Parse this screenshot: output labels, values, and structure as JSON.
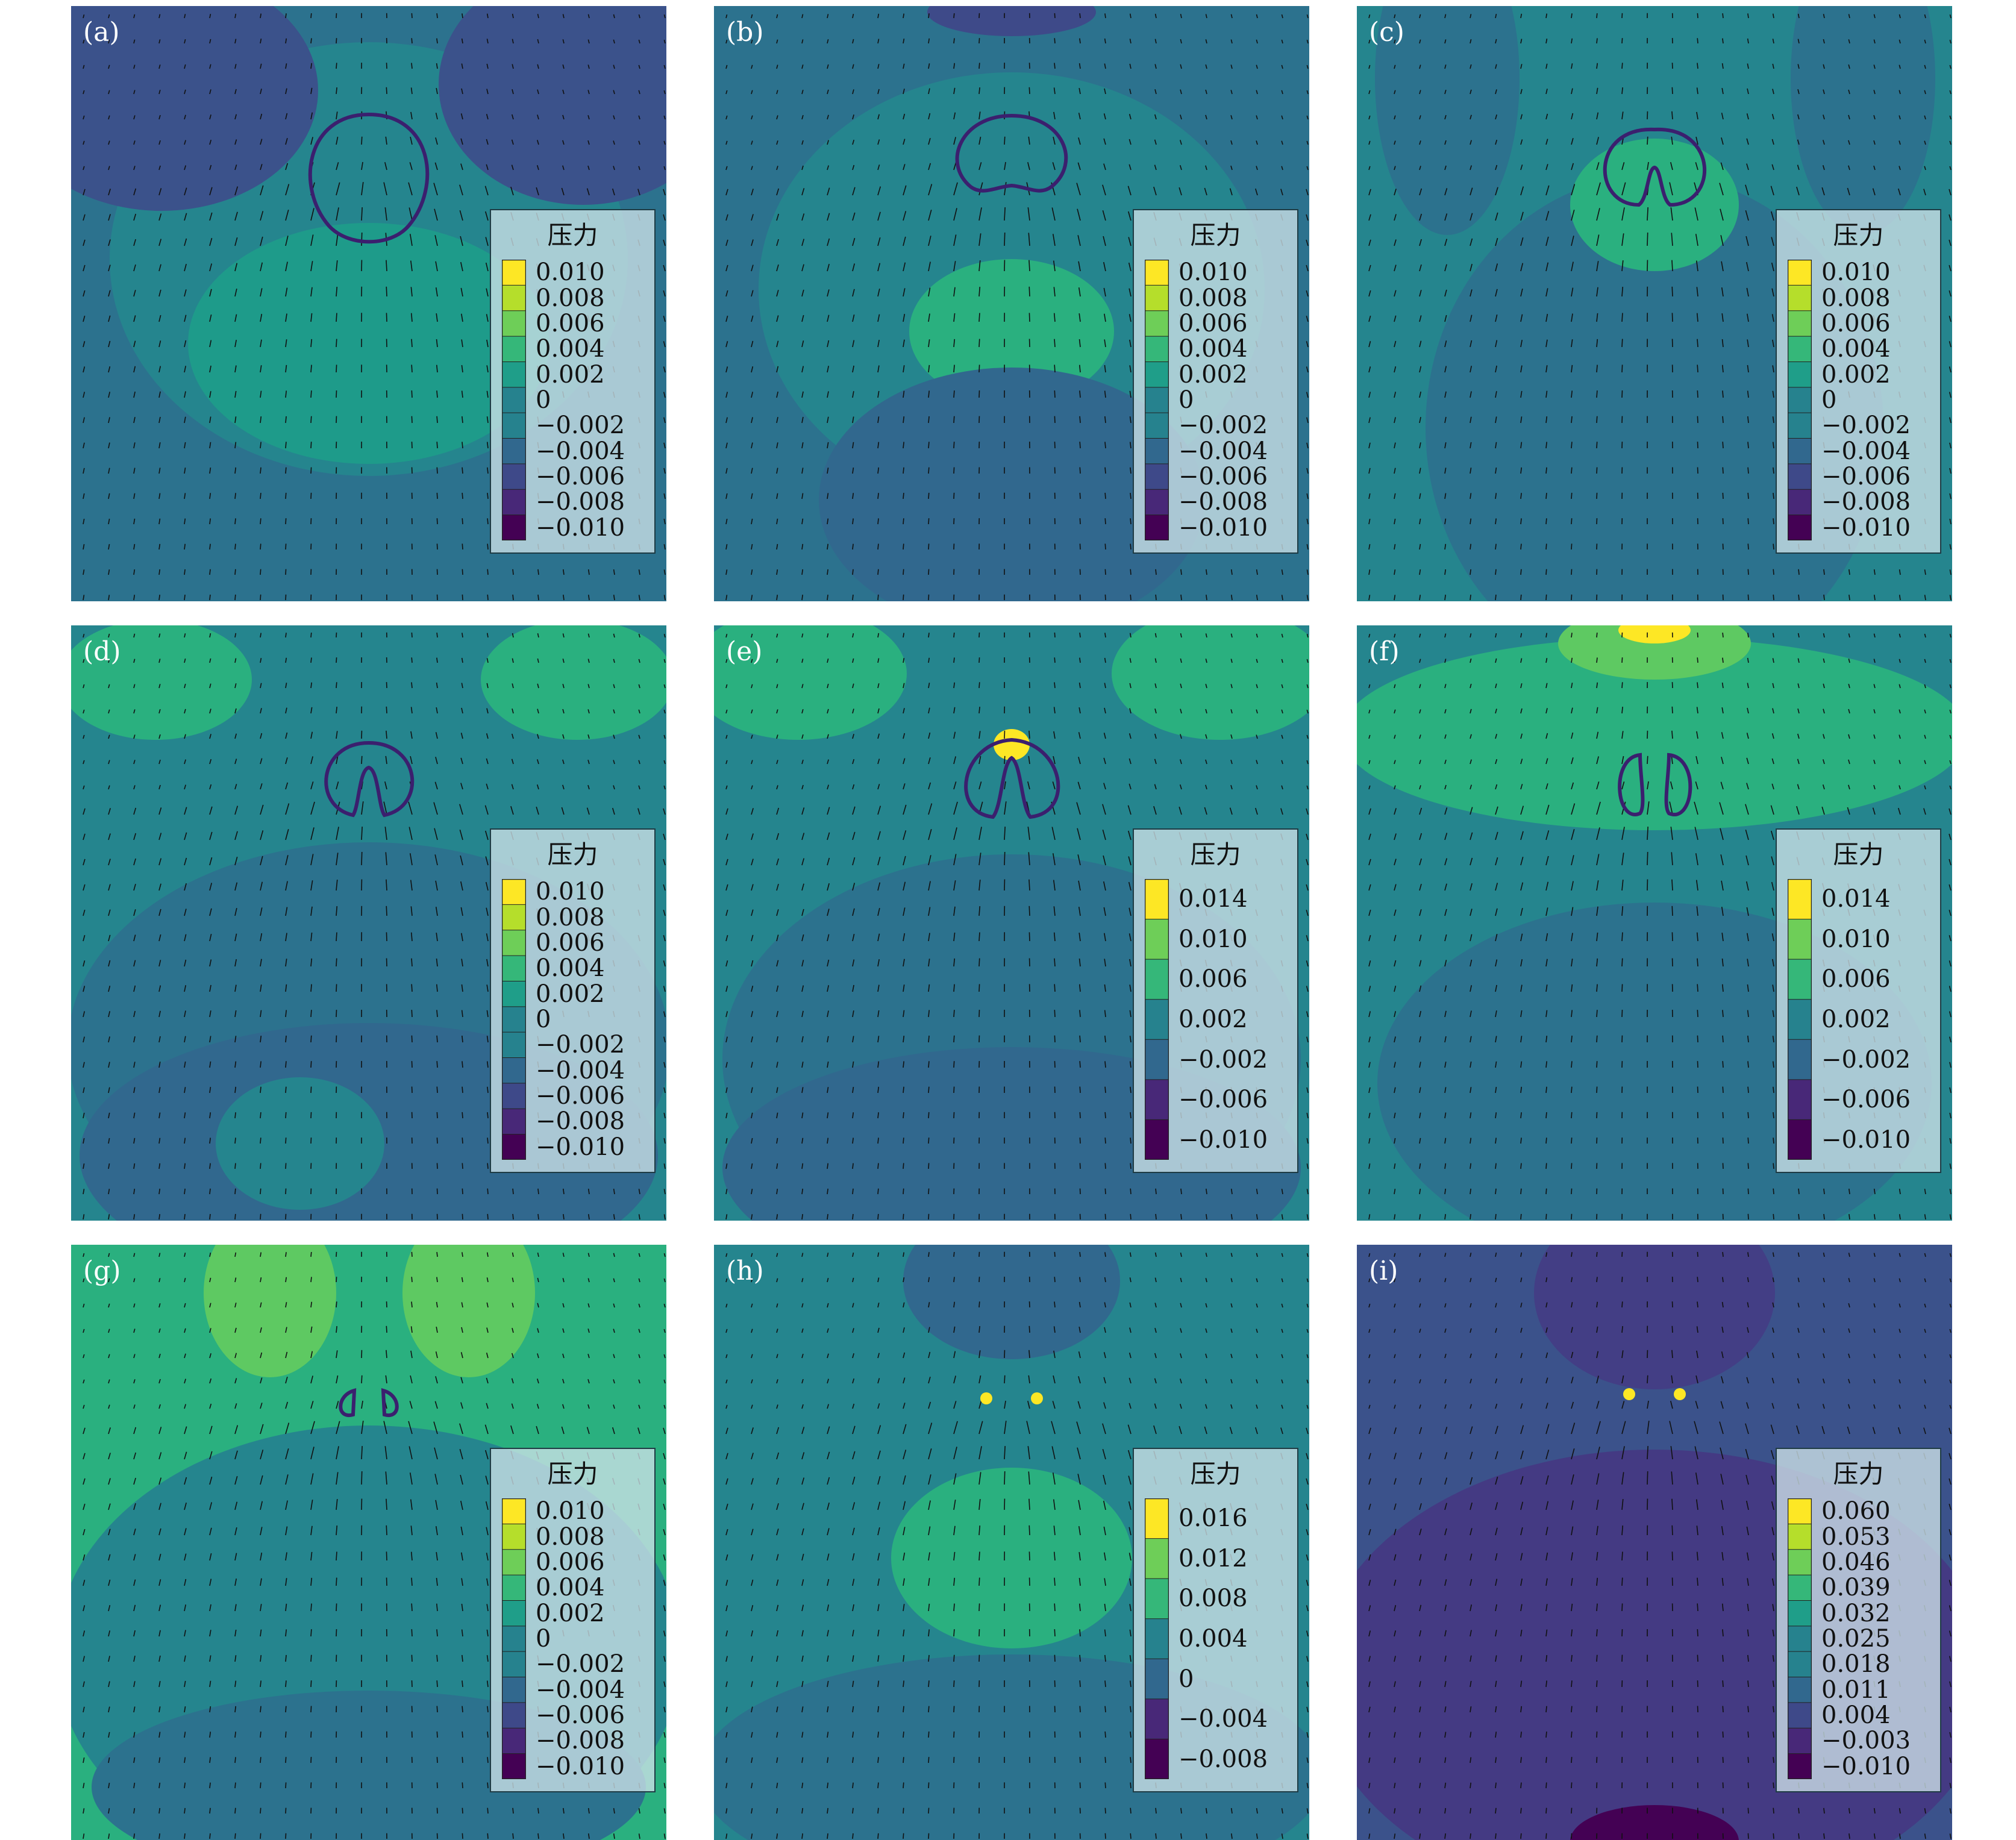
{
  "figure": {
    "panels": [
      {
        "label": "(a)",
        "legend_title": "压力",
        "ticks": [
          "0.010",
          "0.008",
          "0.006",
          "0.004",
          "0.002",
          "0",
          "−0.002",
          "−0.004",
          "−0.006",
          "−0.008",
          "−0.010"
        ]
      },
      {
        "label": "(b)",
        "legend_title": "压力",
        "ticks": [
          "0.010",
          "0.008",
          "0.006",
          "0.004",
          "0.002",
          "0",
          "−0.002",
          "−0.004",
          "−0.006",
          "−0.008",
          "−0.010"
        ]
      },
      {
        "label": "(c)",
        "legend_title": "压力",
        "ticks": [
          "0.010",
          "0.008",
          "0.006",
          "0.004",
          "0.002",
          "0",
          "−0.002",
          "−0.004",
          "−0.006",
          "−0.008",
          "−0.010"
        ]
      },
      {
        "label": "(d)",
        "legend_title": "压力",
        "ticks": [
          "0.010",
          "0.008",
          "0.006",
          "0.004",
          "0.002",
          "0",
          "−0.002",
          "−0.004",
          "−0.006",
          "−0.008",
          "−0.010"
        ]
      },
      {
        "label": "(e)",
        "legend_title": "压力",
        "ticks": [
          "0.014",
          "0.010",
          "0.006",
          "0.002",
          "−0.002",
          "−0.006",
          "−0.010"
        ]
      },
      {
        "label": "(f)",
        "legend_title": "压力",
        "ticks": [
          "0.014",
          "0.010",
          "0.006",
          "0.002",
          "−0.002",
          "−0.006",
          "−0.010"
        ]
      },
      {
        "label": "(g)",
        "legend_title": "压力",
        "ticks": [
          "0.010",
          "0.008",
          "0.006",
          "0.004",
          "0.002",
          "0",
          "−0.002",
          "−0.004",
          "−0.006",
          "−0.008",
          "−0.010"
        ]
      },
      {
        "label": "(h)",
        "legend_title": "压力",
        "ticks": [
          "0.016",
          "0.012",
          "0.008",
          "0.004",
          "0",
          "−0.004",
          "−0.008"
        ]
      },
      {
        "label": "(i)",
        "legend_title": "压力",
        "ticks": [
          "0.060",
          "0.053",
          "0.046",
          "0.039",
          "0.032",
          "0.025",
          "0.018",
          "0.011",
          "0.004",
          "−0.003",
          "−0.010"
        ]
      }
    ]
  },
  "chart_data": [
    {
      "type": "heatmap",
      "title": "",
      "colorbar_label": "压力",
      "colormap": "viridis",
      "levels": [
        0.01,
        0.008,
        0.006,
        0.004,
        0.002,
        0,
        -0.002,
        -0.004,
        -0.006,
        -0.008,
        -0.01
      ],
      "vmin": -0.01,
      "vmax": 0.01,
      "overlay": "velocity vectors",
      "interface_shape": "circular bubble"
    },
    {
      "type": "heatmap",
      "title": "",
      "colorbar_label": "压力",
      "colormap": "viridis",
      "levels": [
        0.01,
        0.008,
        0.006,
        0.004,
        0.002,
        0,
        -0.002,
        -0.004,
        -0.006,
        -0.008,
        -0.01
      ],
      "vmin": -0.01,
      "vmax": 0.01,
      "overlay": "velocity vectors",
      "interface_shape": "bubble with indented base"
    },
    {
      "type": "heatmap",
      "title": "",
      "colorbar_label": "压力",
      "colormap": "viridis",
      "levels": [
        0.01,
        0.008,
        0.006,
        0.004,
        0.002,
        0,
        -0.002,
        -0.004,
        -0.006,
        -0.008,
        -0.01
      ],
      "vmin": -0.01,
      "vmax": 0.01,
      "overlay": "velocity vectors",
      "interface_shape": "toroidal cap"
    },
    {
      "type": "heatmap",
      "title": "",
      "colorbar_label": "压力",
      "colormap": "viridis",
      "levels": [
        0.01,
        0.008,
        0.006,
        0.004,
        0.002,
        0,
        -0.002,
        -0.004,
        -0.006,
        -0.008,
        -0.01
      ],
      "vmin": -0.01,
      "vmax": 0.01,
      "overlay": "velocity vectors",
      "interface_shape": "jet piercing cap"
    },
    {
      "type": "heatmap",
      "title": "",
      "colorbar_label": "压力",
      "colormap": "viridis",
      "levels": [
        0.014,
        0.01,
        0.006,
        0.002,
        -0.002,
        -0.006,
        -0.01
      ],
      "vmin": -0.01,
      "vmax": 0.014,
      "overlay": "velocity vectors",
      "interface_shape": "split with pressure peak at top"
    },
    {
      "type": "heatmap",
      "title": "",
      "colorbar_label": "压力",
      "colormap": "viridis",
      "levels": [
        0.014,
        0.01,
        0.006,
        0.002,
        -0.002,
        -0.006,
        -0.01
      ],
      "vmin": -0.01,
      "vmax": 0.014,
      "overlay": "velocity vectors",
      "interface_shape": "two separated lobes"
    },
    {
      "type": "heatmap",
      "title": "",
      "colorbar_label": "压力",
      "colormap": "viridis",
      "levels": [
        0.01,
        0.008,
        0.006,
        0.004,
        0.002,
        0,
        -0.002,
        -0.004,
        -0.006,
        -0.008,
        -0.01
      ],
      "vmin": -0.01,
      "vmax": 0.01,
      "overlay": "velocity vectors",
      "interface_shape": "two small lobes"
    },
    {
      "type": "heatmap",
      "title": "",
      "colorbar_label": "压力",
      "colormap": "viridis",
      "levels": [
        0.016,
        0.012,
        0.008,
        0.004,
        0,
        -0.004,
        -0.008
      ],
      "vmin": -0.008,
      "vmax": 0.016,
      "overlay": "velocity vectors",
      "interface_shape": "two collapse hot spots"
    },
    {
      "type": "heatmap",
      "title": "",
      "colorbar_label": "压力",
      "colormap": "viridis",
      "levels": [
        0.06,
        0.053,
        0.046,
        0.039,
        0.032,
        0.025,
        0.018,
        0.011,
        0.004,
        -0.003,
        -0.01
      ],
      "vmin": -0.01,
      "vmax": 0.06,
      "overlay": "velocity vectors",
      "interface_shape": "two collapse hot spots"
    }
  ]
}
